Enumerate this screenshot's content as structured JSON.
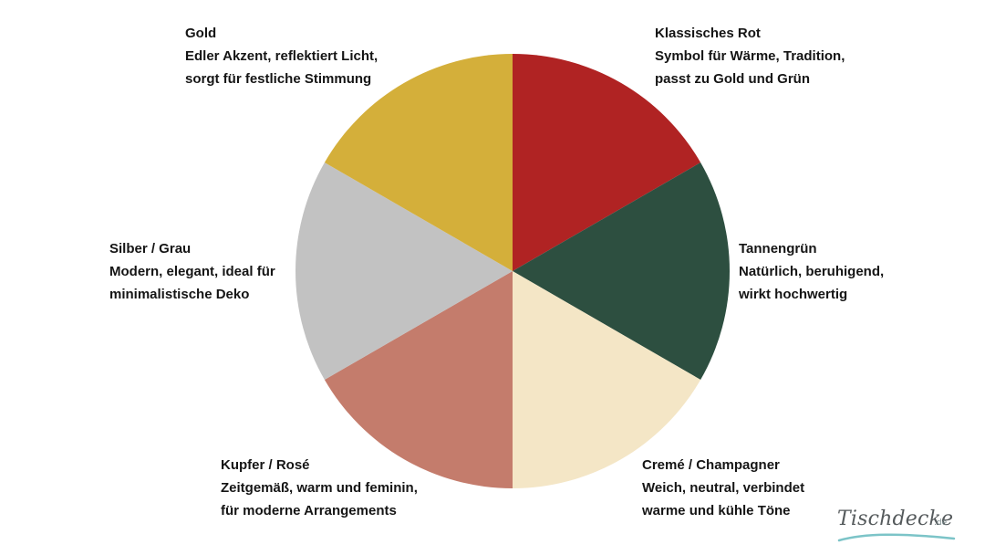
{
  "chart_data": {
    "type": "pie",
    "title": "",
    "start_angle_deg": 0,
    "direction": "clockwise",
    "slices": [
      {
        "name": "Klassisches Rot",
        "value": 1,
        "color": "#b02323",
        "line1": "Symbol für Wärme, Tradition,",
        "line2": "passt zu Gold und Grün"
      },
      {
        "name": "Tannengrün",
        "value": 1,
        "color": "#2d4f40",
        "line1": "Natürlich, beruhigend,",
        "line2": "wirkt hochwertig"
      },
      {
        "name": "Cremé / Champagner",
        "value": 1,
        "color": "#f4e6c6",
        "line1": "Weich, neutral, verbindet",
        "line2": "warme und kühle Töne"
      },
      {
        "name": "Kupfer / Rosé",
        "value": 1,
        "color": "#c47c6c",
        "line1": "Zeitgemäß, warm und feminin,",
        "line2": "für moderne Arrangements"
      },
      {
        "name": "Silber / Grau",
        "value": 1,
        "color": "#c2c2c2",
        "line1": "Modern, elegant, ideal für",
        "line2": "minimalistische Deko"
      },
      {
        "name": "Gold",
        "value": 1,
        "color": "#d4af3a",
        "line1": "Edler Akzent, reflektiert Licht,",
        "line2": "sorgt für festliche Stimmung"
      }
    ]
  },
  "logo": {
    "name": "Tischdecke",
    "tld": ".de",
    "swoosh_color": "#7cc4c8"
  }
}
